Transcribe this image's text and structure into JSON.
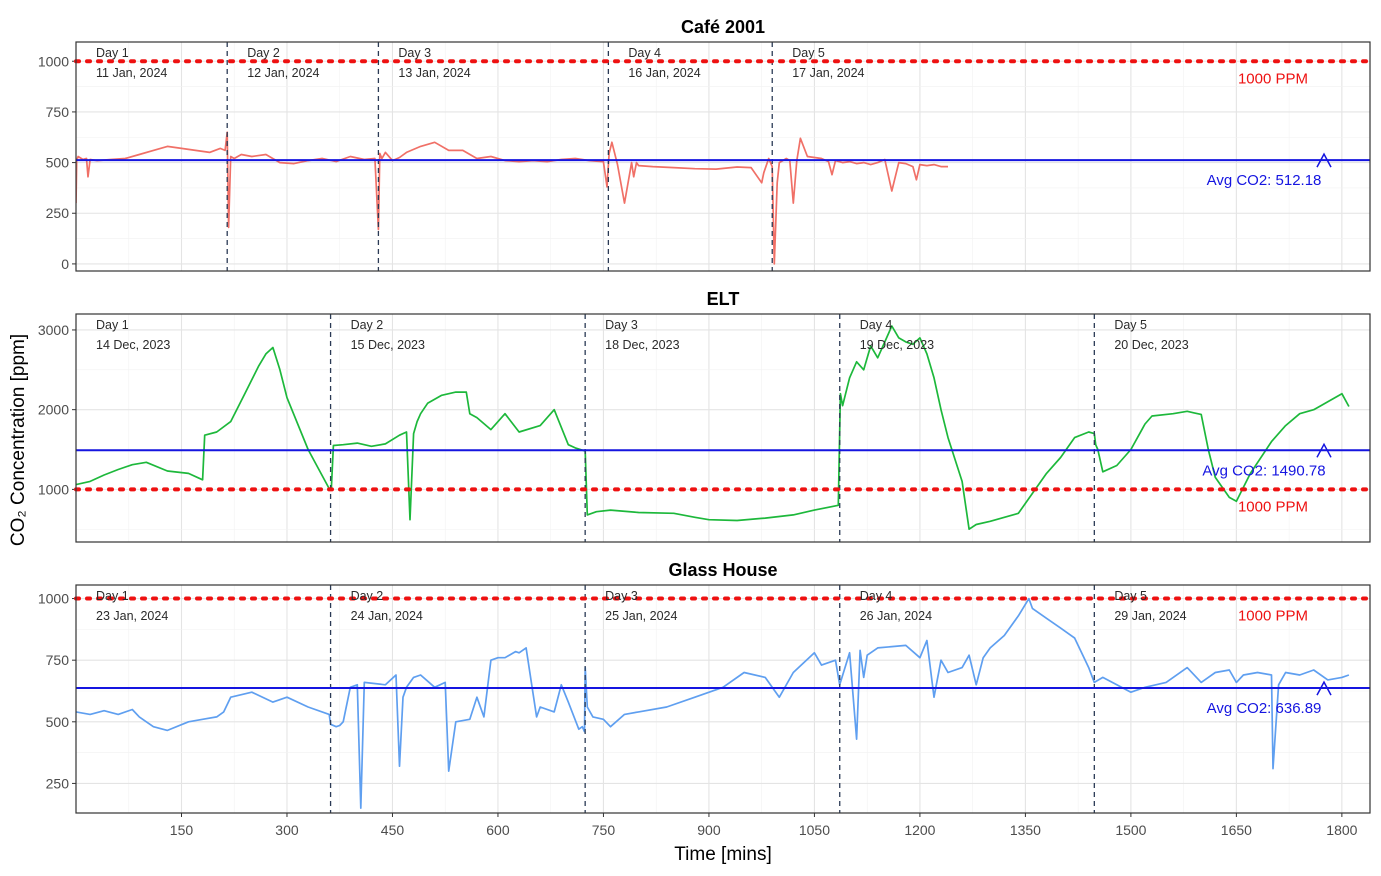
{
  "figure": {
    "ylabel": "CO₂ Concentration [ppm]",
    "xlabel": "Time [mins]",
    "x_ticks": [
      150,
      300,
      450,
      600,
      750,
      900,
      1050,
      1200,
      1350,
      1500,
      1650,
      1800
    ],
    "colors": {
      "cafe": "#f07067",
      "elt": "#1db83b",
      "glass": "#5f9ff0",
      "avg": "#1515e0",
      "threshold": "#ee1111",
      "divider": "#2b3a55"
    }
  },
  "chart_data": [
    {
      "type": "line",
      "title": "Café 2001",
      "xlim": [
        0,
        1840
      ],
      "ylim": [
        -35,
        1095
      ],
      "y_ticks": [
        0,
        250,
        500,
        750,
        1000
      ],
      "grid": true,
      "threshold": {
        "value": 1000,
        "label": "1000 PPM"
      },
      "average": {
        "value": 512.18,
        "label": "Avg CO2: 512.18"
      },
      "day_boundaries": [
        215,
        430,
        757,
        990
      ],
      "days": [
        {
          "label": "Day 1",
          "date": "11 Jan, 2024",
          "x": 0
        },
        {
          "label": "Day 2",
          "date": "12 Jan, 2024",
          "x": 215
        },
        {
          "label": "Day 3",
          "date": "13 Jan, 2024",
          "x": 430
        },
        {
          "label": "Day 4",
          "date": "16 Jan, 2024",
          "x": 757
        },
        {
          "label": "Day 5",
          "date": "17 Jan, 2024",
          "x": 990
        }
      ],
      "series": [
        {
          "x": [
            0,
            1,
            3,
            10,
            15,
            17,
            20,
            30,
            50,
            70,
            90,
            110,
            130,
            150,
            170,
            190,
            205,
            212,
            215,
            217,
            220,
            225,
            235,
            250,
            270,
            290,
            310,
            330,
            350,
            370,
            390,
            410,
            425,
            430,
            432,
            435,
            440,
            450,
            460,
            470,
            490,
            510,
            530,
            550,
            570,
            590,
            610,
            630,
            650,
            670,
            690,
            710,
            730,
            750,
            755,
            758,
            762,
            770,
            780,
            790,
            793,
            797,
            800,
            820,
            850,
            880,
            910,
            940,
            960,
            975,
            978,
            985,
            990,
            993,
            997,
            1000,
            1005,
            1010,
            1015,
            1020,
            1025,
            1030,
            1040,
            1060,
            1070,
            1075,
            1080,
            1090,
            1100,
            1110,
            1120,
            1130,
            1140,
            1150,
            1160,
            1170,
            1180,
            1190,
            1195,
            1200,
            1210,
            1220,
            1225,
            1230,
            1240
          ],
          "values": [
            300,
            510,
            530,
            515,
            520,
            430,
            515,
            510,
            515,
            520,
            540,
            560,
            580,
            570,
            560,
            550,
            570,
            560,
            650,
            180,
            530,
            520,
            540,
            530,
            540,
            500,
            495,
            510,
            520,
            505,
            530,
            515,
            520,
            170,
            545,
            520,
            550,
            510,
            525,
            550,
            580,
            600,
            560,
            560,
            520,
            530,
            510,
            505,
            510,
            505,
            515,
            520,
            510,
            505,
            380,
            545,
            600,
            490,
            300,
            500,
            430,
            500,
            485,
            480,
            475,
            470,
            468,
            478,
            475,
            400,
            450,
            520,
            480,
            0,
            400,
            500,
            510,
            520,
            510,
            300,
            510,
            620,
            530,
            520,
            505,
            440,
            510,
            500,
            505,
            495,
            500,
            490,
            500,
            515,
            360,
            500,
            495,
            480,
            415,
            490,
            485,
            490,
            485,
            480,
            480
          ]
        }
      ]
    },
    {
      "type": "line",
      "title": "ELT",
      "xlim": [
        0,
        1840
      ],
      "ylim": [
        340,
        3200
      ],
      "y_ticks": [
        1000,
        2000,
        3000
      ],
      "grid": true,
      "threshold": {
        "value": 1000,
        "label": "1000 PPM"
      },
      "average": {
        "value": 1490.78,
        "label": "Avg CO2: 1490.78"
      },
      "day_boundaries": [
        362,
        724,
        1086,
        1448
      ],
      "days": [
        {
          "label": "Day 1",
          "date": "14 Dec, 2023",
          "x": 0
        },
        {
          "label": "Day 2",
          "date": "15 Dec, 2023",
          "x": 362
        },
        {
          "label": "Day 3",
          "date": "18 Dec, 2023",
          "x": 724
        },
        {
          "label": "Day 4",
          "date": "19 Dec, 2023",
          "x": 1086
        },
        {
          "label": "Day 5",
          "date": "20 Dec, 2023",
          "x": 1448
        }
      ],
      "series": [
        {
          "x": [
            0,
            20,
            40,
            60,
            80,
            100,
            130,
            160,
            180,
            183,
            200,
            220,
            240,
            260,
            270,
            280,
            290,
            300,
            330,
            360,
            363,
            366,
            380,
            400,
            420,
            440,
            460,
            470,
            475,
            480,
            485,
            490,
            500,
            520,
            540,
            555,
            560,
            570,
            590,
            610,
            630,
            660,
            680,
            700,
            710,
            724,
            727,
            740,
            760,
            800,
            850,
            880,
            900,
            940,
            980,
            1020,
            1050,
            1084,
            1087,
            1090,
            1100,
            1110,
            1120,
            1130,
            1140,
            1150,
            1160,
            1170,
            1180,
            1190,
            1200,
            1210,
            1220,
            1230,
            1240,
            1260,
            1270,
            1280,
            1300,
            1340,
            1380,
            1400,
            1420,
            1440,
            1448,
            1450,
            1453,
            1460,
            1480,
            1500,
            1520,
            1530,
            1560,
            1580,
            1590,
            1600,
            1610,
            1620,
            1640,
            1650,
            1670,
            1700,
            1720,
            1740,
            1760,
            1770,
            1780,
            1800,
            1810
          ],
          "values": [
            1060,
            1100,
            1180,
            1250,
            1310,
            1340,
            1230,
            1200,
            1120,
            1680,
            1720,
            1850,
            2200,
            2550,
            2700,
            2780,
            2500,
            2150,
            1500,
            1010,
            1000,
            1550,
            1560,
            1580,
            1540,
            1570,
            1680,
            1720,
            620,
            1700,
            1850,
            1950,
            2080,
            2180,
            2220,
            2220,
            1950,
            1900,
            1750,
            1950,
            1720,
            1800,
            2000,
            1560,
            1520,
            1480,
            680,
            720,
            740,
            710,
            700,
            650,
            620,
            610,
            640,
            680,
            740,
            800,
            2200,
            2050,
            2400,
            2600,
            2500,
            2800,
            2650,
            2850,
            3050,
            2900,
            2850,
            2820,
            2900,
            2700,
            2400,
            2000,
            1650,
            1100,
            500,
            560,
            600,
            700,
            1200,
            1400,
            1650,
            1720,
            1700,
            1560,
            1500,
            1220,
            1300,
            1500,
            1820,
            1920,
            1950,
            1980,
            1960,
            1940,
            1500,
            1150,
            900,
            850,
            1200,
            1600,
            1800,
            1950,
            2000,
            2050,
            2100,
            2200,
            2040
          ]
        }
      ]
    },
    {
      "type": "line",
      "title": "Glass House",
      "xlim": [
        0,
        1840
      ],
      "ylim": [
        130,
        1055
      ],
      "y_ticks": [
        250,
        500,
        750,
        1000
      ],
      "grid": true,
      "threshold": {
        "value": 1000,
        "label": "1000 PPM"
      },
      "average": {
        "value": 636.89,
        "label": "Avg CO2: 636.89"
      },
      "day_boundaries": [
        362,
        724,
        1086,
        1448
      ],
      "days": [
        {
          "label": "Day 1",
          "date": "23 Jan, 2024",
          "x": 0
        },
        {
          "label": "Day 2",
          "date": "24 Jan, 2024",
          "x": 362
        },
        {
          "label": "Day 3",
          "date": "25 Jan, 2024",
          "x": 724
        },
        {
          "label": "Day 4",
          "date": "26 Jan, 2024",
          "x": 1086
        },
        {
          "label": "Day 5",
          "date": "29 Jan, 2024",
          "x": 1448
        }
      ],
      "series": [
        {
          "x": [
            0,
            20,
            40,
            60,
            80,
            90,
            100,
            110,
            130,
            160,
            180,
            200,
            210,
            220,
            250,
            280,
            300,
            330,
            360,
            362,
            370,
            375,
            380,
            390,
            400,
            405,
            410,
            440,
            455,
            460,
            465,
            470,
            480,
            490,
            510,
            525,
            530,
            540,
            560,
            570,
            580,
            590,
            600,
            610,
            625,
            630,
            640,
            655,
            660,
            680,
            690,
            700,
            715,
            720,
            723,
            724,
            727,
            735,
            750,
            760,
            780,
            800,
            840,
            880,
            920,
            950,
            980,
            1000,
            1020,
            1050,
            1060,
            1080,
            1086,
            1100,
            1110,
            1115,
            1120,
            1125,
            1140,
            1180,
            1200,
            1210,
            1220,
            1230,
            1240,
            1260,
            1270,
            1280,
            1290,
            1300,
            1320,
            1340,
            1355,
            1360,
            1380,
            1400,
            1420,
            1440,
            1448,
            1460,
            1480,
            1500,
            1520,
            1550,
            1580,
            1600,
            1610,
            1620,
            1640,
            1650,
            1660,
            1680,
            1700,
            1702,
            1710,
            1720,
            1740,
            1760,
            1780,
            1800,
            1810
          ],
          "values": [
            540,
            530,
            545,
            530,
            550,
            520,
            500,
            480,
            465,
            500,
            510,
            520,
            540,
            600,
            620,
            580,
            600,
            560,
            530,
            490,
            480,
            485,
            500,
            640,
            650,
            150,
            660,
            650,
            690,
            320,
            600,
            640,
            680,
            690,
            640,
            660,
            300,
            500,
            510,
            600,
            520,
            750,
            760,
            760,
            785,
            780,
            800,
            520,
            560,
            540,
            650,
            580,
            470,
            480,
            460,
            720,
            560,
            520,
            510,
            480,
            530,
            540,
            560,
            600,
            640,
            700,
            680,
            600,
            700,
            780,
            730,
            750,
            650,
            780,
            430,
            790,
            680,
            770,
            800,
            810,
            760,
            830,
            600,
            750,
            700,
            720,
            770,
            650,
            760,
            800,
            850,
            930,
            1000,
            960,
            920,
            880,
            840,
            720,
            660,
            680,
            650,
            620,
            640,
            660,
            720,
            660,
            680,
            700,
            710,
            660,
            690,
            700,
            690,
            310,
            650,
            700,
            690,
            710,
            670,
            680,
            690
          ]
        }
      ]
    }
  ]
}
